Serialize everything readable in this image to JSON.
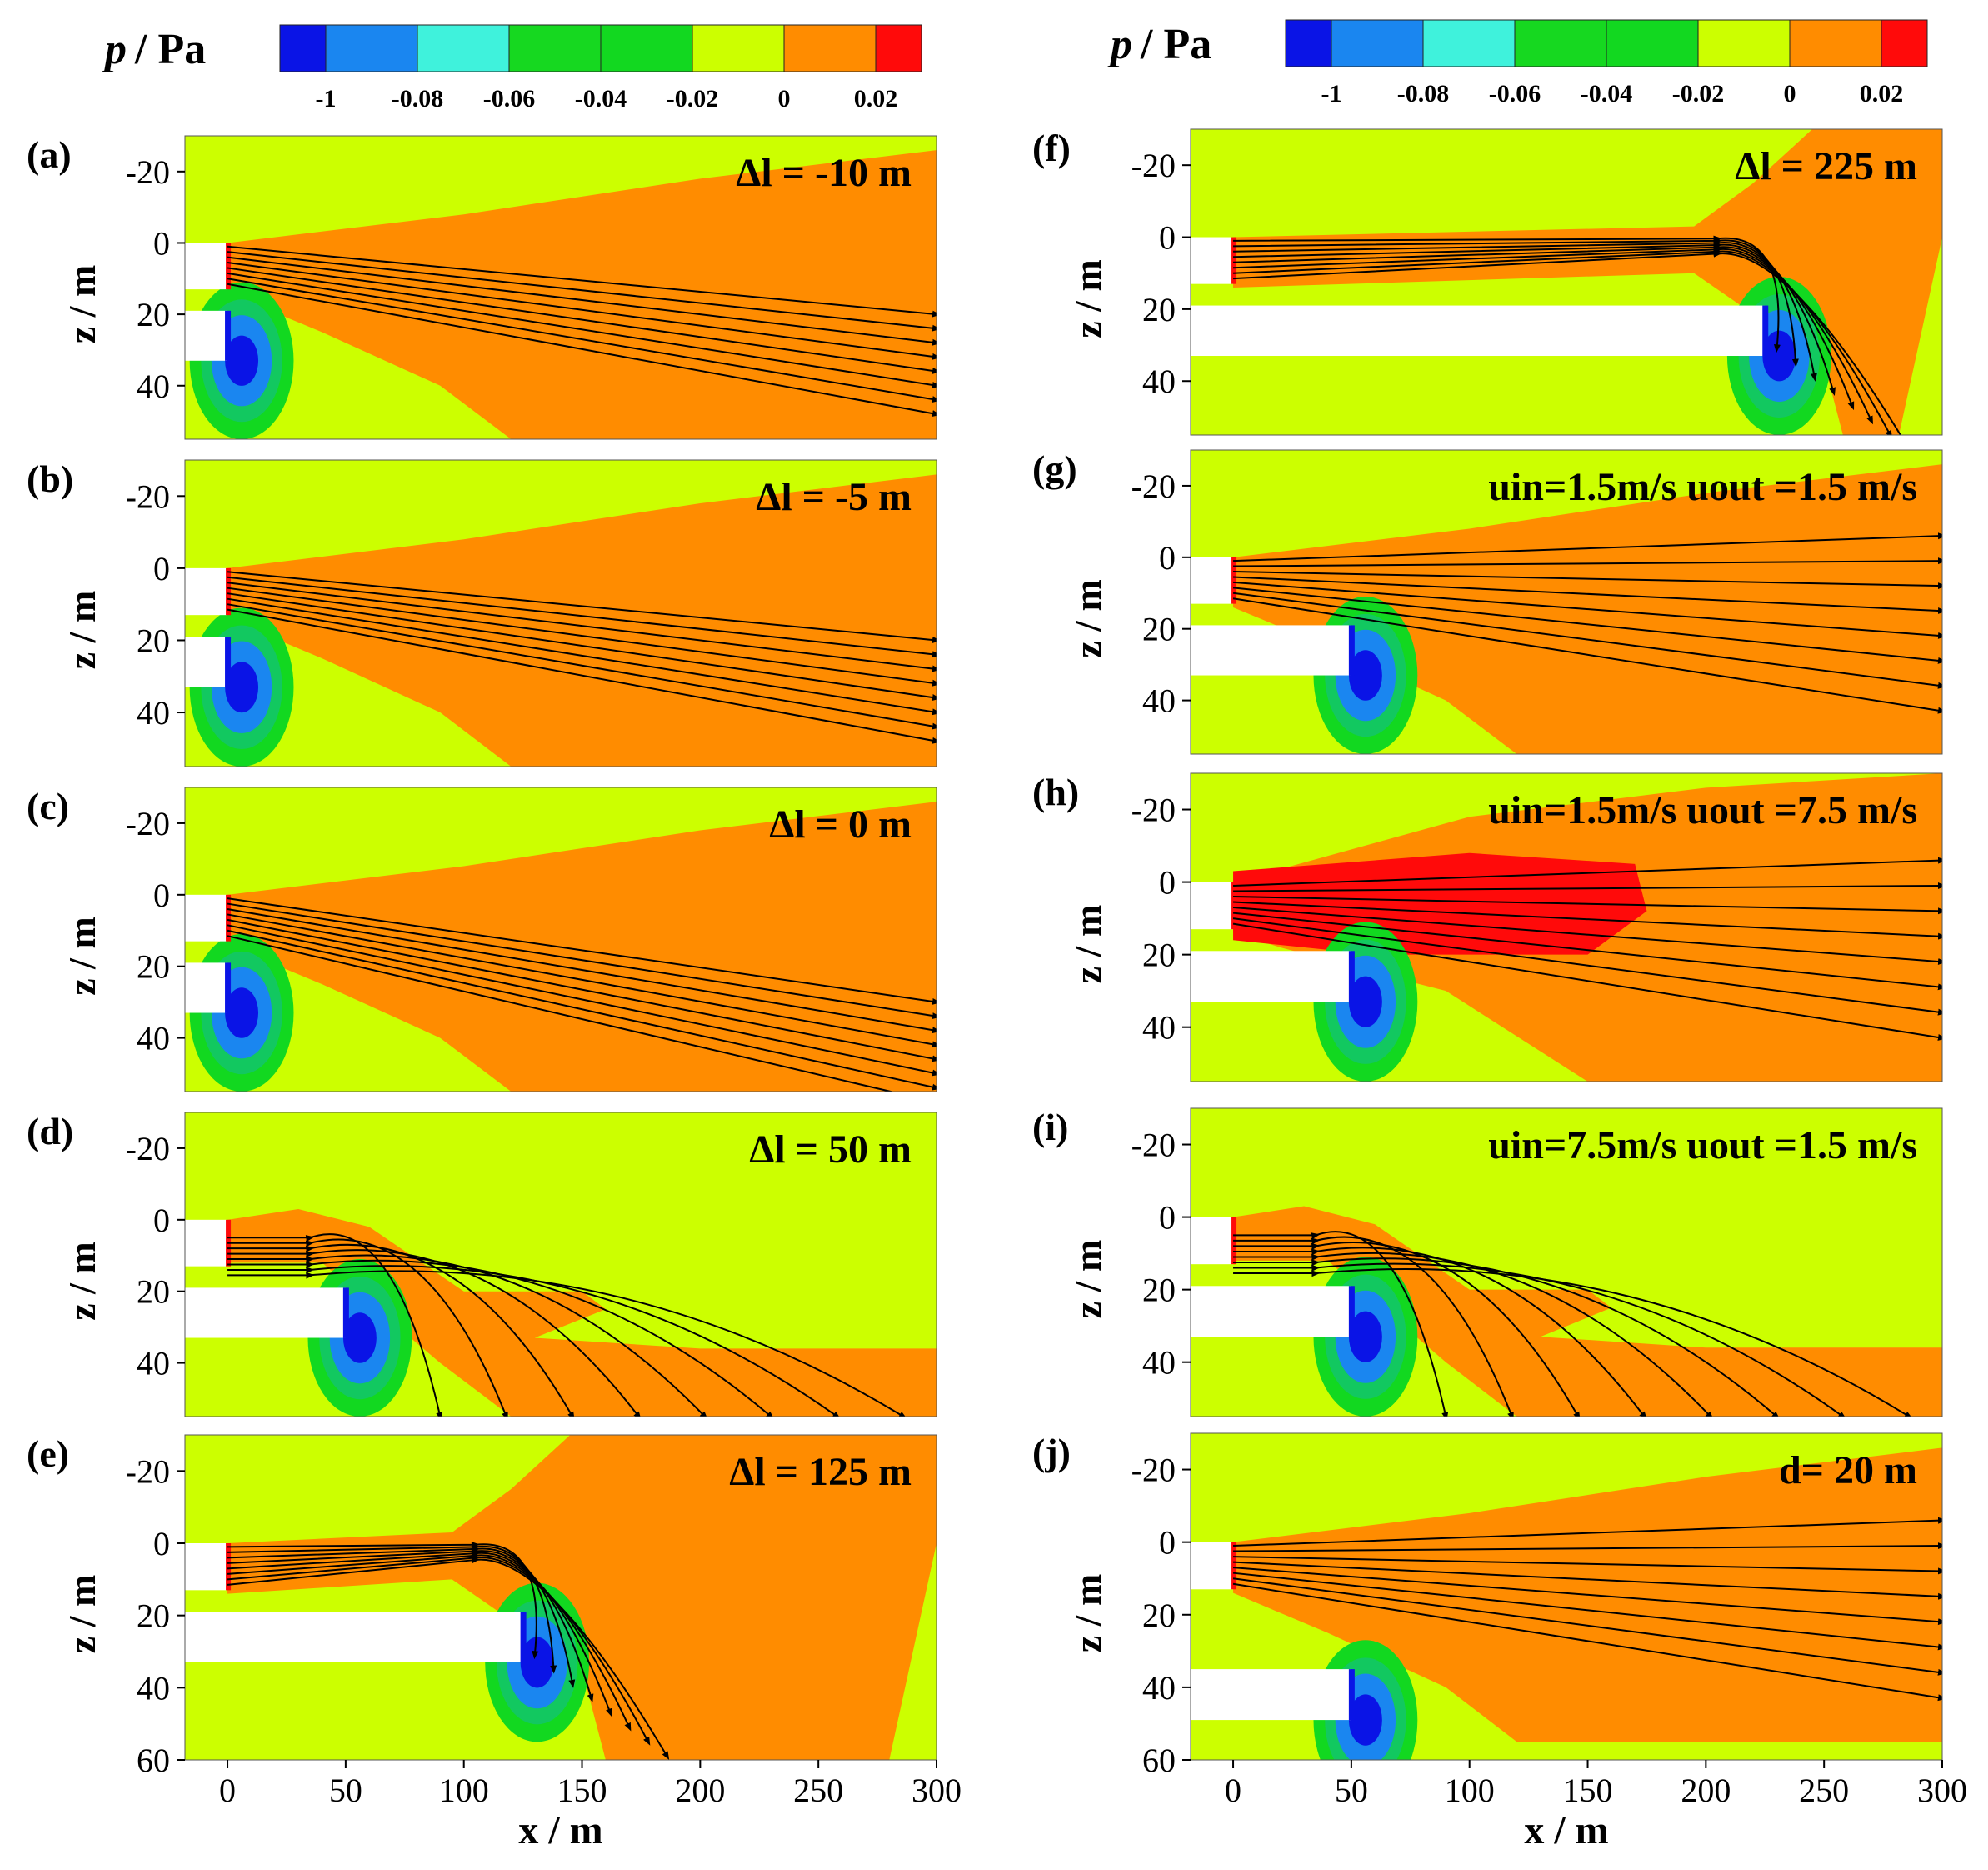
{
  "figure": {
    "colorbar_title": "/ Pa",
    "colorbar_symbol": "p",
    "colorbar_labels": [
      "-1",
      "-0.08",
      "-0.06",
      "-0.04",
      "-0.02",
      "0",
      "0.02"
    ],
    "colorbar_colors": [
      "#0a14e6",
      "#1a86f0",
      "#3ff2dc",
      "#16d820",
      "#12d820",
      "#ccff00",
      "#ff8c00",
      "#ff0a0a"
    ],
    "colors": {
      "background": "#ccff00",
      "positive": "#ff8c00",
      "high": "#ff0a0a",
      "negative_outer": "#12d820",
      "negative_mid": "#1a86f0",
      "negative_core": "#0a14e6",
      "streamline": "#000000"
    },
    "z_tick_labels": [
      "-20",
      "0",
      "20",
      "40"
    ],
    "z_tick_labels_bottom": [
      "-20",
      "0",
      "20",
      "40",
      "60"
    ],
    "x_tick_labels": [
      "0",
      "50",
      "100",
      "150",
      "200",
      "250",
      "300"
    ],
    "ylabel": "z / m",
    "xlabel": "x / m"
  },
  "chart_data": [
    {
      "type": "heatmap",
      "label": "(a)",
      "annotation": "Δl = -10 m",
      "variable": "p / Pa",
      "xlim": [
        -18,
        300
      ],
      "ylim": [
        55,
        -30
      ],
      "delta_l": -10,
      "levels": [
        -1,
        -0.08,
        -0.06,
        -0.04,
        -0.02,
        0,
        0.02
      ]
    },
    {
      "type": "heatmap",
      "label": "(b)",
      "annotation": "Δl = -5 m",
      "variable": "p / Pa",
      "xlim": [
        -18,
        300
      ],
      "ylim": [
        55,
        -30
      ],
      "delta_l": -5,
      "levels": [
        -1,
        -0.08,
        -0.06,
        -0.04,
        -0.02,
        0,
        0.02
      ]
    },
    {
      "type": "heatmap",
      "label": "(c)",
      "annotation": "Δl = 0 m",
      "variable": "p / Pa",
      "xlim": [
        -18,
        300
      ],
      "ylim": [
        55,
        -30
      ],
      "delta_l": 0,
      "levels": [
        -1,
        -0.08,
        -0.06,
        -0.04,
        -0.02,
        0,
        0.02
      ]
    },
    {
      "type": "heatmap",
      "label": "(d)",
      "annotation": "Δl = 50 m",
      "variable": "p / Pa",
      "xlim": [
        -18,
        300
      ],
      "ylim": [
        55,
        -30
      ],
      "delta_l": 50,
      "levels": [
        -1,
        -0.08,
        -0.06,
        -0.04,
        -0.02,
        0,
        0.02
      ]
    },
    {
      "type": "heatmap",
      "label": "(e)",
      "annotation": "Δl = 125 m",
      "variable": "p / Pa",
      "xlim": [
        -18,
        300
      ],
      "ylim": [
        60,
        -30
      ],
      "delta_l": 125,
      "levels": [
        -1,
        -0.08,
        -0.06,
        -0.04,
        -0.02,
        0,
        0.02
      ]
    },
    {
      "type": "heatmap",
      "label": "(f)",
      "annotation": "Δl = 225 m",
      "variable": "p / Pa",
      "xlim": [
        -18,
        300
      ],
      "ylim": [
        55,
        -30
      ],
      "delta_l": 225,
      "levels": [
        -1,
        -0.08,
        -0.06,
        -0.04,
        -0.02,
        0,
        0.02
      ]
    },
    {
      "type": "heatmap",
      "label": "(g)",
      "annotation": "uin=1.5m/s  uout =1.5 m/s",
      "variable": "p / Pa",
      "xlim": [
        -18,
        300
      ],
      "ylim": [
        55,
        -30
      ],
      "u_in": 1.5,
      "u_out": 1.5,
      "levels": [
        -1,
        -0.08,
        -0.06,
        -0.04,
        -0.02,
        0,
        0.02
      ]
    },
    {
      "type": "heatmap",
      "label": "(h)",
      "annotation": "uin=1.5m/s  uout =7.5 m/s",
      "variable": "p / Pa",
      "xlim": [
        -18,
        300
      ],
      "ylim": [
        55,
        -30
      ],
      "u_in": 1.5,
      "u_out": 7.5,
      "levels": [
        -1,
        -0.08,
        -0.06,
        -0.04,
        -0.02,
        0,
        0.02
      ]
    },
    {
      "type": "heatmap",
      "label": "(i)",
      "annotation": "uin=7.5m/s  uout =1.5 m/s",
      "variable": "p / Pa",
      "xlim": [
        -18,
        300
      ],
      "ylim": [
        55,
        -30
      ],
      "u_in": 7.5,
      "u_out": 1.5,
      "levels": [
        -1,
        -0.08,
        -0.06,
        -0.04,
        -0.02,
        0,
        0.02
      ]
    },
    {
      "type": "heatmap",
      "label": "(j)",
      "annotation": "d= 20 m",
      "variable": "p / Pa",
      "xlim": [
        -18,
        300
      ],
      "ylim": [
        60,
        -30
      ],
      "d": 20,
      "levels": [
        -1,
        -0.08,
        -0.06,
        -0.04,
        -0.02,
        0,
        0.02
      ]
    }
  ]
}
